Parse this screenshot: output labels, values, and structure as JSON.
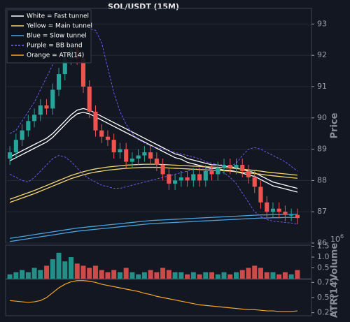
{
  "chart_data": [
    {
      "type": "candlestick",
      "title": "SOL/USDT (15M)",
      "ylabel": "Price",
      "ylim": [
        86,
        93.5
      ],
      "yticks": [
        86,
        87,
        88,
        89,
        90,
        91,
        92,
        93
      ],
      "grid": true,
      "legend": "upper left",
      "up_color": "#26a69a",
      "down_color": "#ef5350",
      "open": [
        88.7,
        88.9,
        89.3,
        89.6,
        89.9,
        90.1,
        90.4,
        90.3,
        90.9,
        91.4,
        91.9,
        92.2,
        91.9,
        91.0,
        90.2,
        89.6,
        89.4,
        89.3,
        88.9,
        89.0,
        88.6,
        88.7,
        88.8,
        88.9,
        88.7,
        88.5,
        88.2,
        87.9,
        88.0,
        88.1,
        88.0,
        88.2,
        88.0,
        88.3,
        88.2,
        88.4,
        88.5,
        88.4,
        88.5,
        88.3,
        88.1,
        87.8,
        87.3,
        87.0,
        87.1,
        87.0,
        86.9,
        86.9
      ],
      "high": [
        89.1,
        89.5,
        89.8,
        90.1,
        90.3,
        90.6,
        90.6,
        91.1,
        91.6,
        92.1,
        92.4,
        92.4,
        92.1,
        91.2,
        90.4,
        89.8,
        89.6,
        89.5,
        89.2,
        89.2,
        88.9,
        89.0,
        89.1,
        89.1,
        88.9,
        88.7,
        88.4,
        88.2,
        88.3,
        88.3,
        88.4,
        88.4,
        88.5,
        88.5,
        88.6,
        88.7,
        88.7,
        88.7,
        88.7,
        88.5,
        88.3,
        88.0,
        87.5,
        87.3,
        87.3,
        87.2,
        87.1,
        87.1
      ],
      "low": [
        88.5,
        88.7,
        89.1,
        89.4,
        89.7,
        89.9,
        90.1,
        90.1,
        90.7,
        91.2,
        91.7,
        91.7,
        90.8,
        90.0,
        89.4,
        89.2,
        89.1,
        88.7,
        88.7,
        88.4,
        88.4,
        88.5,
        88.6,
        88.5,
        88.3,
        88.0,
        87.7,
        87.7,
        87.8,
        87.8,
        87.8,
        87.8,
        87.8,
        88.0,
        88.0,
        88.2,
        88.2,
        88.2,
        88.1,
        87.9,
        87.6,
        87.1,
        86.8,
        86.8,
        86.8,
        86.7,
        86.7,
        86.6
      ],
      "close": [
        88.9,
        89.3,
        89.6,
        89.9,
        90.1,
        90.4,
        90.3,
        90.9,
        91.4,
        91.9,
        92.2,
        91.9,
        91.0,
        90.2,
        89.6,
        89.4,
        89.3,
        88.9,
        89.0,
        88.6,
        88.7,
        88.8,
        88.9,
        88.7,
        88.5,
        88.2,
        87.9,
        88.0,
        88.1,
        88.0,
        88.2,
        88.0,
        88.3,
        88.2,
        88.4,
        88.5,
        88.4,
        88.5,
        88.3,
        88.1,
        87.8,
        87.3,
        87.0,
        87.1,
        87.0,
        86.9,
        86.9,
        86.8
      ],
      "series": [
        {
          "name": "White = Fast tunnel",
          "color": "#ffffff",
          "upper": [
            88.75,
            88.85,
            88.95,
            89.05,
            89.15,
            89.25,
            89.35,
            89.5,
            89.7,
            89.9,
            90.1,
            90.25,
            90.3,
            90.25,
            90.15,
            90.05,
            89.95,
            89.85,
            89.75,
            89.65,
            89.55,
            89.45,
            89.35,
            89.25,
            89.15,
            89.05,
            88.95,
            88.85,
            88.8,
            88.7,
            88.65,
            88.6,
            88.55,
            88.5,
            88.5,
            88.45,
            88.45,
            88.4,
            88.35,
            88.3,
            88.25,
            88.15,
            88.05,
            87.95,
            87.9,
            87.85,
            87.8,
            87.75
          ],
          "lower": [
            88.63,
            88.73,
            88.83,
            88.93,
            89.03,
            89.13,
            89.23,
            89.38,
            89.58,
            89.78,
            89.98,
            90.13,
            90.18,
            90.13,
            90.03,
            89.93,
            89.83,
            89.73,
            89.63,
            89.53,
            89.43,
            89.33,
            89.23,
            89.13,
            89.03,
            88.93,
            88.83,
            88.73,
            88.68,
            88.58,
            88.53,
            88.48,
            88.43,
            88.38,
            88.38,
            88.33,
            88.33,
            88.28,
            88.23,
            88.18,
            88.13,
            88.03,
            87.93,
            87.83,
            87.78,
            87.73,
            87.68,
            87.63
          ]
        },
        {
          "name": "Yellow = Main tunnel",
          "color": "#f5d76e",
          "upper": [
            87.4,
            87.47,
            87.54,
            87.61,
            87.68,
            87.76,
            87.84,
            87.92,
            88.0,
            88.08,
            88.16,
            88.22,
            88.28,
            88.33,
            88.37,
            88.4,
            88.43,
            88.45,
            88.47,
            88.49,
            88.5,
            88.51,
            88.52,
            88.52,
            88.52,
            88.51,
            88.5,
            88.49,
            88.48,
            88.47,
            88.46,
            88.45,
            88.44,
            88.43,
            88.42,
            88.41,
            88.4,
            88.38,
            88.36,
            88.34,
            88.32,
            88.3,
            88.27,
            88.25,
            88.23,
            88.21,
            88.19,
            88.17
          ],
          "lower": [
            87.3,
            87.37,
            87.44,
            87.51,
            87.58,
            87.66,
            87.74,
            87.82,
            87.9,
            87.98,
            88.06,
            88.12,
            88.18,
            88.23,
            88.27,
            88.3,
            88.33,
            88.35,
            88.37,
            88.39,
            88.4,
            88.41,
            88.42,
            88.42,
            88.42,
            88.41,
            88.4,
            88.39,
            88.38,
            88.37,
            88.36,
            88.35,
            88.34,
            88.33,
            88.32,
            88.31,
            88.3,
            88.28,
            88.26,
            88.24,
            88.22,
            88.2,
            88.17,
            88.15,
            88.13,
            88.11,
            88.09,
            88.07
          ]
        },
        {
          "name": "Blue = Slow tunnel",
          "color": "#4aa3df",
          "upper": [
            86.15,
            86.18,
            86.21,
            86.24,
            86.27,
            86.3,
            86.33,
            86.36,
            86.39,
            86.42,
            86.45,
            86.48,
            86.5,
            86.52,
            86.54,
            86.56,
            86.58,
            86.6,
            86.62,
            86.64,
            86.66,
            86.68,
            86.7,
            86.72,
            86.73,
            86.74,
            86.75,
            86.76,
            86.77,
            86.78,
            86.79,
            86.8,
            86.81,
            86.82,
            86.83,
            86.84,
            86.85,
            86.86,
            86.87,
            86.88,
            86.89,
            86.9,
            86.9,
            86.91,
            86.91,
            86.92,
            86.92,
            86.92
          ],
          "lower": [
            86.05,
            86.08,
            86.11,
            86.14,
            86.17,
            86.2,
            86.23,
            86.26,
            86.29,
            86.32,
            86.35,
            86.38,
            86.4,
            86.42,
            86.44,
            86.46,
            86.48,
            86.5,
            86.52,
            86.54,
            86.56,
            86.58,
            86.6,
            86.62,
            86.63,
            86.64,
            86.65,
            86.66,
            86.67,
            86.68,
            86.69,
            86.7,
            86.71,
            86.72,
            86.73,
            86.74,
            86.75,
            86.76,
            86.77,
            86.78,
            86.79,
            86.8,
            86.8,
            86.81,
            86.81,
            86.82,
            86.82,
            86.82
          ]
        },
        {
          "name": "Purple = BB band",
          "color": "#7b5cff",
          "dashed": true,
          "upper": [
            89.5,
            89.6,
            89.9,
            90.2,
            90.5,
            90.9,
            91.3,
            91.7,
            92.0,
            92.3,
            92.5,
            92.6,
            92.75,
            92.85,
            92.8,
            92.4,
            91.6,
            90.8,
            90.2,
            89.8,
            89.5,
            89.3,
            89.2,
            89.1,
            89.05,
            89.0,
            88.95,
            88.9,
            88.85,
            88.8,
            88.75,
            88.7,
            88.6,
            88.55,
            88.5,
            88.5,
            88.45,
            88.55,
            88.8,
            89.0,
            89.05,
            89.0,
            88.9,
            88.8,
            88.7,
            88.6,
            88.45,
            88.3
          ],
          "lower": [
            88.2,
            88.1,
            88.0,
            87.95,
            88.1,
            88.3,
            88.5,
            88.7,
            88.8,
            88.75,
            88.6,
            88.4,
            88.2,
            88.05,
            87.95,
            87.85,
            87.8,
            87.75,
            87.75,
            87.8,
            87.85,
            87.9,
            87.95,
            88.0,
            88.05,
            88.1,
            88.15,
            88.2,
            88.25,
            88.3,
            88.35,
            88.4,
            88.4,
            88.35,
            88.3,
            88.25,
            88.1,
            87.9,
            87.6,
            87.3,
            87.0,
            86.85,
            86.75,
            86.7,
            86.68,
            86.66,
            86.64,
            86.6
          ]
        },
        {
          "name": "Orange = ATR(14)",
          "color": "#f5a623"
        }
      ]
    },
    {
      "type": "bar",
      "ylabel": "Volume",
      "scale_base": "10",
      "scale_exponent": "6",
      "ylim": [
        0,
        1.55
      ],
      "yticks": [
        0.5,
        {
          "value": 1,
          "label": "1.0"
        },
        1.5
      ],
      "values": [
        0.2,
        0.3,
        0.4,
        0.3,
        0.5,
        0.4,
        0.6,
        0.9,
        1.2,
        0.8,
        1.0,
        0.7,
        0.6,
        0.5,
        0.6,
        0.4,
        0.3,
        0.4,
        0.3,
        0.5,
        0.3,
        0.2,
        0.3,
        0.4,
        0.3,
        0.5,
        0.4,
        0.3,
        0.3,
        0.2,
        0.3,
        0.2,
        0.3,
        0.3,
        0.2,
        0.3,
        0.2,
        0.3,
        0.4,
        0.5,
        0.6,
        0.5,
        0.3,
        0.3,
        0.2,
        0.3,
        0.2,
        0.4
      ]
    },
    {
      "type": "line",
      "ylabel": "ATR(14)",
      "color": "#f5a623",
      "ylim": [
        0.2,
        0.8
      ],
      "yticks": [
        0.25,
        {
          "value": 0.5,
          "label": "0.50"
        },
        0.75
      ],
      "values": [
        0.45,
        0.44,
        0.43,
        0.42,
        0.43,
        0.45,
        0.5,
        0.58,
        0.66,
        0.72,
        0.76,
        0.78,
        0.78,
        0.77,
        0.75,
        0.72,
        0.7,
        0.68,
        0.66,
        0.64,
        0.62,
        0.6,
        0.57,
        0.55,
        0.52,
        0.5,
        0.48,
        0.46,
        0.44,
        0.42,
        0.4,
        0.38,
        0.37,
        0.36,
        0.35,
        0.34,
        0.33,
        0.32,
        0.31,
        0.3,
        0.3,
        0.29,
        0.28,
        0.28,
        0.27,
        0.27,
        0.27,
        0.28
      ]
    }
  ]
}
